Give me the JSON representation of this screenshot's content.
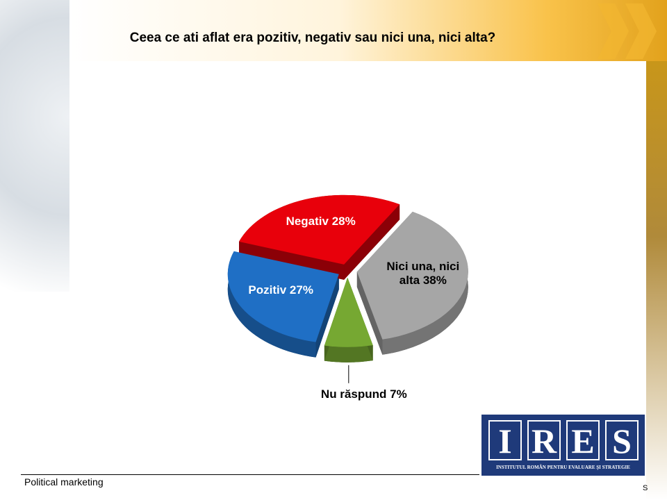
{
  "chart_data": {
    "type": "pie",
    "title": "Ceea ce ati aflat era pozitiv, negativ sau nici una, nici alta?",
    "categories": [
      "Nici una, nici alta",
      "Nu răspund",
      "Pozitiv",
      "Negativ"
    ],
    "values": [
      38,
      7,
      27,
      28
    ],
    "value_labels": [
      "38%",
      "7%",
      "27%",
      "28%"
    ],
    "colors": [
      "#a6a6a6",
      "#76a832",
      "#1f6fc5",
      "#e8000b"
    ]
  },
  "footer": "Political marketing",
  "logo": {
    "letters": [
      "I",
      "R",
      "E",
      "S"
    ],
    "subtitle": "INSTITUTUL ROMÂN PENTRU EVALUARE ŞI STRATEGIE"
  },
  "corner_text": "S"
}
